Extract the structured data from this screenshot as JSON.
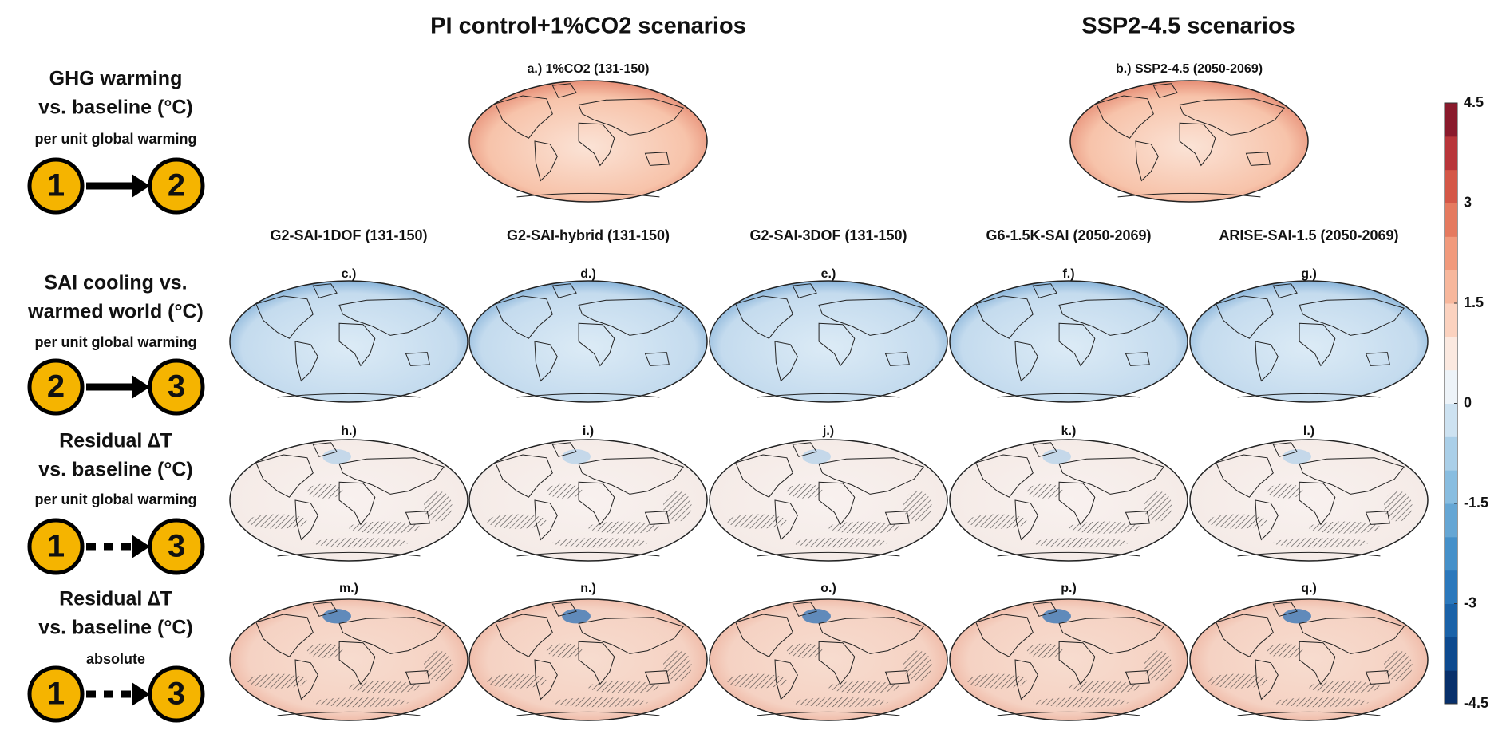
{
  "column_groups": [
    "PI control+1%CO2 scenarios",
    "SSP2-4.5 scenarios"
  ],
  "rows": [
    {
      "title_lines": [
        "GHG warming",
        "vs. baseline (°C)"
      ],
      "note": "per unit global warming",
      "from": "1",
      "to": "2",
      "arrow": "solid"
    },
    {
      "title_lines": [
        "SAI cooling vs.",
        "warmed world (°C)"
      ],
      "note": "per unit global warming",
      "from": "2",
      "to": "3",
      "arrow": "solid"
    },
    {
      "title_lines": [
        "Residual ∆T",
        "vs. baseline (°C)"
      ],
      "note": "per unit global warming",
      "from": "1",
      "to": "3",
      "arrow": "dashed"
    },
    {
      "title_lines": [
        "Residual ∆T",
        "vs. baseline (°C)"
      ],
      "note": "absolute",
      "from": "1",
      "to": "3",
      "arrow": "dashed"
    }
  ],
  "top_panels": [
    "a.) 1%CO2 (131-150)",
    "b.) SSP2-4.5 (2050-2069)"
  ],
  "columns": [
    "G2-SAI-1DOF (131-150)",
    "G2-SAI-hybrid (131-150)",
    "G2-SAI-3DOF (131-150)",
    "G6-1.5K-SAI (2050-2069)",
    "ARISE-SAI-1.5 (2050-2069)"
  ],
  "panels": [
    [
      "c.)",
      "d.)",
      "e.)",
      "f.)",
      "g.)"
    ],
    [
      "h.)",
      "i.)",
      "j.)",
      "k.)",
      "l.)"
    ],
    [
      "m.)",
      "n.)",
      "o.)",
      "p.)",
      "q.)"
    ]
  ],
  "colorbar": {
    "range": [
      -4.5,
      4.5
    ],
    "ticks": [
      4.5,
      3,
      1.5,
      0,
      -1.5,
      -3,
      -4.5
    ]
  }
}
